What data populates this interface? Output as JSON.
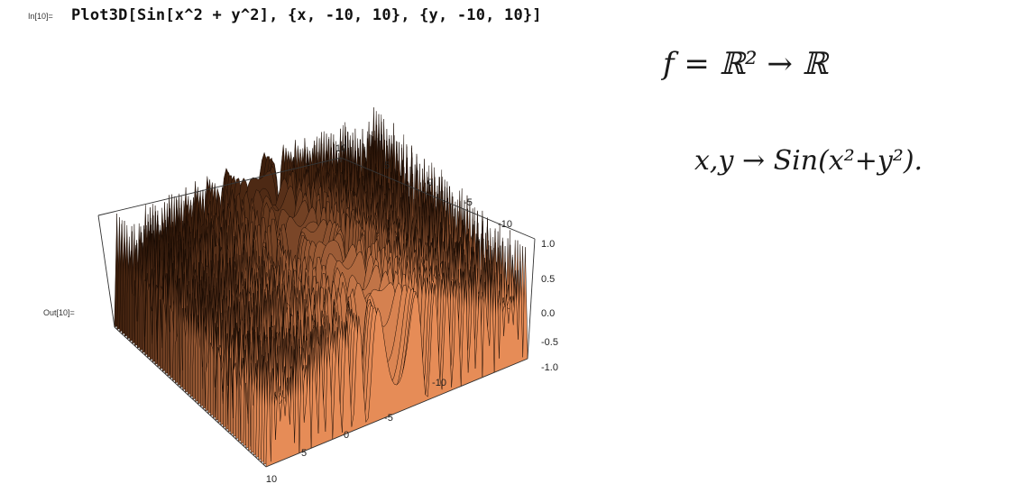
{
  "input": {
    "label": "In[10]=",
    "code": "Plot3D[Sin[x^2 + y^2], {x, -10, 10}, {y, -10, 10}]"
  },
  "output": {
    "label": "Out[10]="
  },
  "plot": {
    "type": "surface3d",
    "function": "Sin[x^2 + y^2]",
    "x_range": [
      -10,
      10
    ],
    "y_range": [
      -10,
      10
    ],
    "z_range": [
      -1.0,
      1.0
    ],
    "x_ticks": [
      "10",
      "5",
      "0",
      "-5",
      "-10"
    ],
    "y_ticks": [
      "10",
      "5",
      "0",
      "-5",
      "-10"
    ],
    "z_ticks": [
      "1.0",
      "0.5",
      "0.0",
      "-0.5",
      "-1.0"
    ],
    "surface_color_light": "#f2b078",
    "surface_color_dark": "#3a1e0c"
  },
  "handwriting": {
    "line1": "f = ℝ² → ℝ",
    "line2": "x,y → Sin(x²+y²)."
  }
}
